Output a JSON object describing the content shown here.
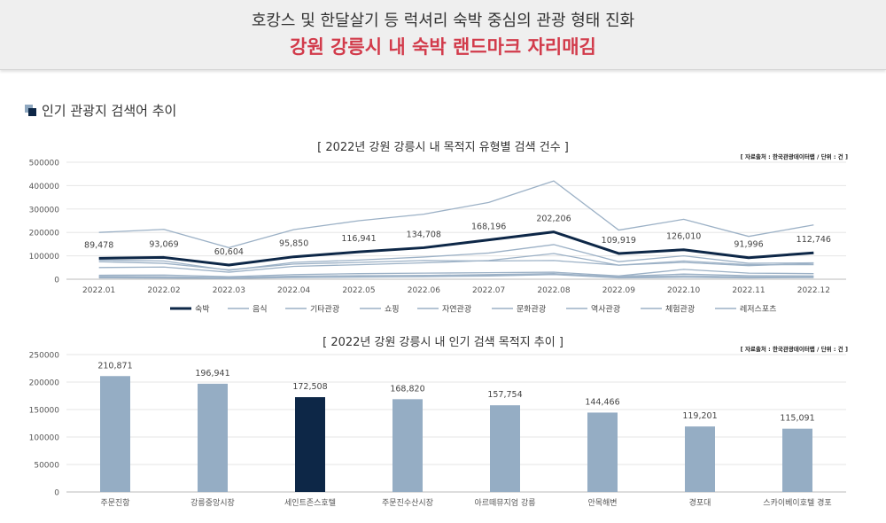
{
  "header": {
    "line1": "호캉스 및 한달살기 등 럭셔리 숙박 중심의 관광 형태 진화",
    "line2": "강원 강릉시 내 숙박 랜드마크 자리매김"
  },
  "section": {
    "title": "인기 관광지 검색어 추이"
  },
  "colors": {
    "highlight": "#0d2747",
    "bar": "#95adc4",
    "line_light": "#9cb1c6",
    "accent_red": "#d23b4b"
  },
  "chart_data": [
    {
      "type": "line",
      "title": "[ 2022년 강원 강릉시 내 목적지 유형별 검색 건수 ]",
      "source": "[ 자료출처 : 한국관광데이터랩 / 단위 : 건 ]",
      "x": [
        "2022.01",
        "2022.02",
        "2022.03",
        "2022.04",
        "2022.05",
        "2022.06",
        "2022.07",
        "2022.08",
        "2022.09",
        "2022.10",
        "2022.11",
        "2022.12"
      ],
      "ylim": [
        0,
        500000
      ],
      "yticks": [
        "0",
        "100000",
        "200000",
        "300000",
        "400000",
        "500000"
      ],
      "legend_position": "bottom",
      "series": [
        {
          "name": "숙박",
          "highlight": true,
          "values": [
            89478,
            93069,
            60604,
            95850,
            116941,
            134708,
            168196,
            202206,
            109919,
            126010,
            91996,
            112746
          ],
          "labels": [
            "89,478",
            "93,069",
            "60,604",
            "95,850",
            "116,941",
            "134,708",
            "168,196",
            "202,206",
            "109,919",
            "126,010",
            "91,996",
            "112,746"
          ]
        },
        {
          "name": "음식",
          "values": [
            200000,
            213000,
            135000,
            212000,
            250000,
            278000,
            328000,
            420000,
            210000,
            256000,
            183000,
            232000
          ]
        },
        {
          "name": "기타관광",
          "values": [
            82000,
            78000,
            38000,
            72000,
            82000,
            95000,
            112000,
            148000,
            75000,
            100000,
            68000,
            70000
          ]
        },
        {
          "name": "쇼핑",
          "values": [
            50000,
            52000,
            30000,
            55000,
            62000,
            70000,
            80000,
            110000,
            60000,
            72000,
            58000,
            68000
          ]
        },
        {
          "name": "자연관광",
          "values": [
            75000,
            68000,
            40000,
            65000,
            72000,
            80000,
            78000,
            80000,
            60000,
            78000,
            62000,
            62000
          ]
        },
        {
          "name": "문화관광",
          "values": [
            17000,
            18000,
            11000,
            20000,
            24000,
            26000,
            28000,
            30000,
            14000,
            42000,
            26000,
            24000
          ]
        },
        {
          "name": "역사관광",
          "values": [
            12000,
            11000,
            7000,
            13000,
            15000,
            16000,
            17000,
            20000,
            12000,
            22000,
            15000,
            14000
          ]
        },
        {
          "name": "체험관광",
          "values": [
            10000,
            9000,
            6000,
            12000,
            14000,
            16000,
            20000,
            24000,
            10000,
            14000,
            10000,
            10000
          ]
        },
        {
          "name": "레저스포츠",
          "values": [
            6000,
            5000,
            3000,
            7000,
            9000,
            11000,
            14000,
            20000,
            6000,
            8000,
            6000,
            7000
          ]
        }
      ]
    },
    {
      "type": "bar",
      "title": "[ 2022년 강원 강릉시 내 인기 검색 목적지 추이 ]",
      "source": "[ 자료출처 : 한국관광데이터랩 / 단위 : 건 ]",
      "categories": [
        "주문진항",
        "강릉중앙시장",
        "세인트존스호텔",
        "주문진수산시장",
        "아르떼뮤지엄 강릉",
        "안목해변",
        "경포대",
        "스카이베이호텔 경포"
      ],
      "values": [
        210871,
        196941,
        172508,
        168820,
        157754,
        144466,
        119201,
        115091
      ],
      "labels": [
        "210,871",
        "196,941",
        "172,508",
        "168,820",
        "157,754",
        "144,466",
        "119,201",
        "115,091"
      ],
      "highlight_index": 2,
      "ylim": [
        0,
        250000
      ],
      "yticks": [
        "0",
        "50000",
        "100000",
        "150000",
        "200000",
        "250000"
      ]
    }
  ]
}
